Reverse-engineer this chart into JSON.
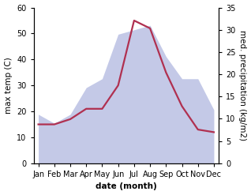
{
  "months": [
    "Jan",
    "Feb",
    "Mar",
    "Apr",
    "May",
    "Jun",
    "Jul",
    "Aug",
    "Sep",
    "Oct",
    "Nov",
    "Dec"
  ],
  "temperature": [
    15,
    15,
    17,
    21,
    21,
    30,
    55,
    52,
    35,
    22,
    13,
    12
  ],
  "precipitation": [
    11,
    9,
    11,
    17,
    19,
    29,
    30,
    31,
    24,
    19,
    19,
    12
  ],
  "temp_ylim": [
    0,
    60
  ],
  "precip_ylim": [
    0,
    35
  ],
  "temp_color": "#b03050",
  "precip_fill_color": "#b0b8e0",
  "precip_fill_alpha": 0.75,
  "xlabel": "date (month)",
  "ylabel_left": "max temp (C)",
  "ylabel_right": "med. precipitation (kg/m2)",
  "bg_color": "#ffffff",
  "label_fontsize": 7.5,
  "tick_fontsize": 7,
  "linewidth": 1.6
}
